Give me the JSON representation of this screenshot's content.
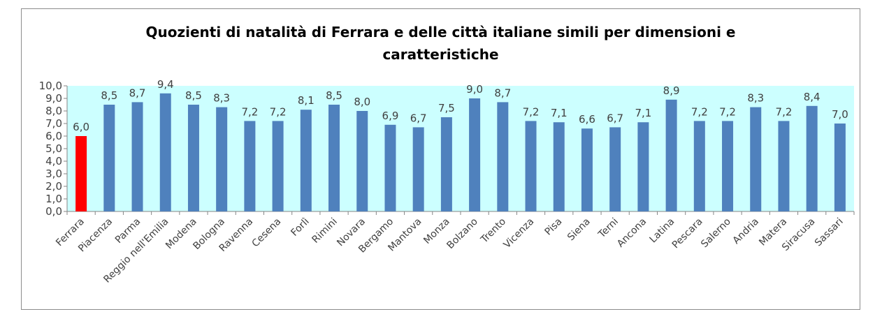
{
  "chart_data": {
    "type": "bar",
    "title_lines": [
      "Quozienti di natalità di Ferrara e delle città italiane simili per dimensioni e",
      "caratteristiche"
    ],
    "categories": [
      "Ferrara",
      "Piacenza",
      "Parma",
      "Reggio nell'Emilia",
      "Modena",
      "Bologna",
      "Ravenna",
      "Cesena",
      "Forlì",
      "Rimini",
      "Novara",
      "Bergamo",
      "Mantova",
      "Monza",
      "Bolzano",
      "Trento",
      "Vicenza",
      "Pisa",
      "Siena",
      "Terni",
      "Ancona",
      "Latina",
      "Pescara",
      "Salerno",
      "Andria",
      "Matera",
      "Siracusa",
      "Sassari"
    ],
    "values": [
      6.0,
      8.5,
      8.7,
      9.4,
      8.5,
      8.3,
      7.2,
      7.2,
      8.1,
      8.5,
      8.0,
      6.9,
      6.7,
      7.5,
      9.0,
      8.7,
      7.2,
      7.1,
      6.6,
      6.7,
      7.1,
      8.9,
      7.2,
      7.2,
      8.3,
      7.2,
      8.4,
      7.0
    ],
    "data_labels": [
      "6,0",
      "8,5",
      "8,7",
      "9,4",
      "8,5",
      "8,3",
      "7,2",
      "7,2",
      "8,1",
      "8,5",
      "8,0",
      "6,9",
      "6,7",
      "7,5",
      "9,0",
      "8,7",
      "7,2",
      "7,1",
      "6,6",
      "6,7",
      "7,1",
      "8,9",
      "7,2",
      "7,2",
      "8,3",
      "7,2",
      "8,4",
      "7,0"
    ],
    "ylim": [
      0,
      10
    ],
    "yticks": [
      "0,0",
      "1,0",
      "2,0",
      "3,0",
      "4,0",
      "5,0",
      "6,0",
      "7,0",
      "8,0",
      "9,0",
      "10,0"
    ],
    "grid": false,
    "legend": "none",
    "colors": {
      "bar": "#4f81bd",
      "highlight": "#ff0000",
      "plot_background": "#ccffff"
    },
    "highlight_category": "Ferrara"
  }
}
